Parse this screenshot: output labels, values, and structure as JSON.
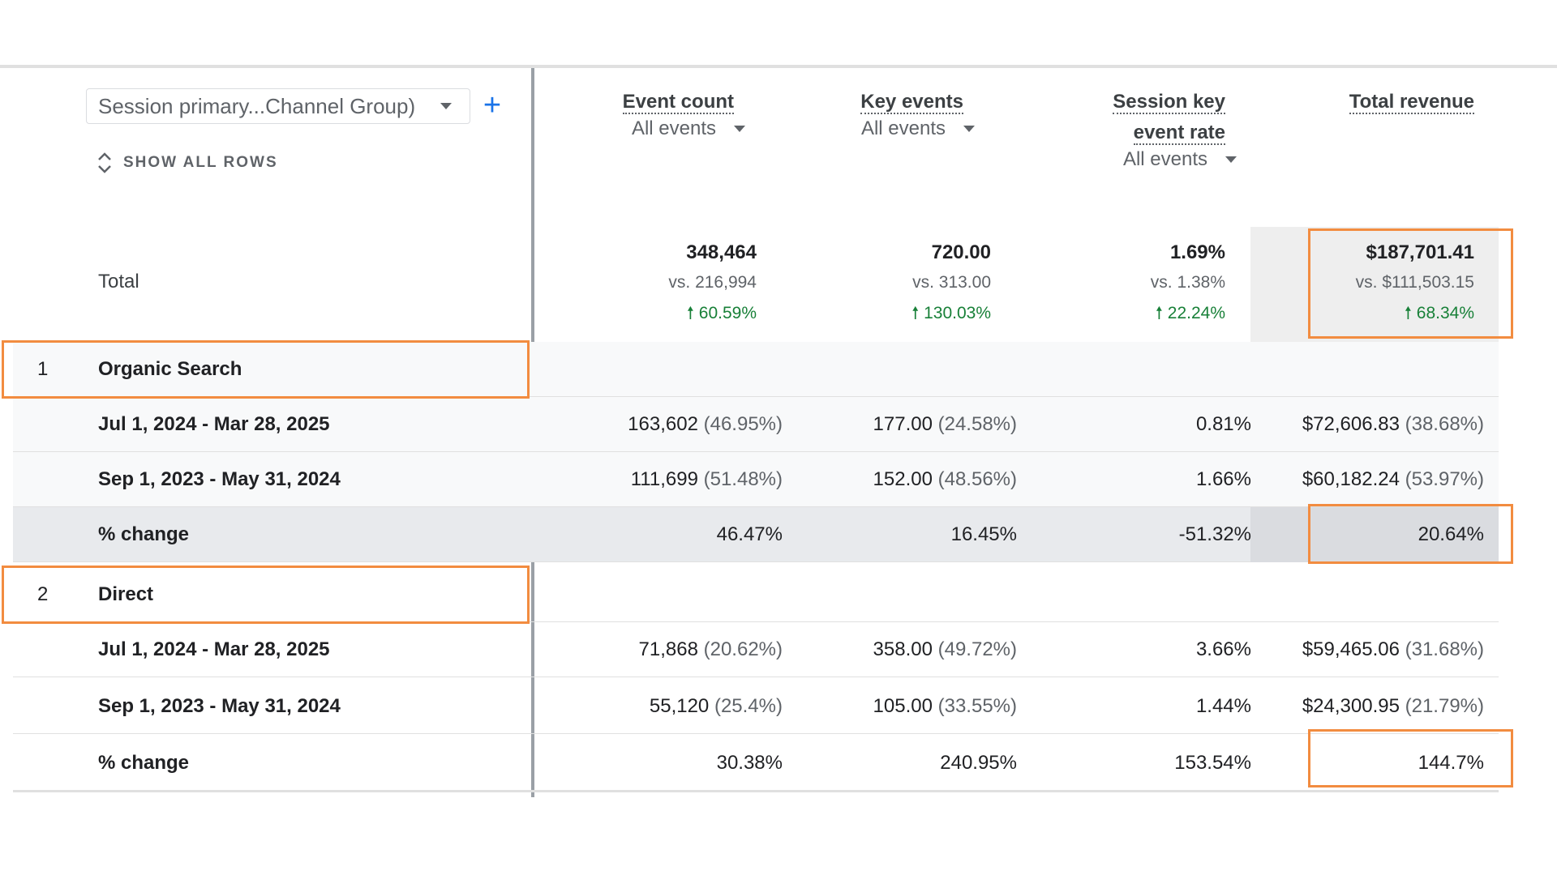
{
  "dimension": {
    "selector_label": "Session primary...Channel Group)",
    "add_label": "+",
    "show_all_rows": "SHOW ALL ROWS"
  },
  "columns": [
    {
      "metric": "Event count",
      "metric2": "",
      "filter": "All events"
    },
    {
      "metric": "Key events",
      "metric2": "",
      "filter": "All events"
    },
    {
      "metric": "Session key",
      "metric2": "event rate",
      "filter": "All events"
    },
    {
      "metric": "Total revenue",
      "metric2": ""
    }
  ],
  "total": {
    "label": "Total",
    "cells": [
      {
        "value": "348,464",
        "vs": "vs. 216,994",
        "pct": "60.59%"
      },
      {
        "value": "720.00",
        "vs": "vs. 313.00",
        "pct": "130.03%"
      },
      {
        "value": "1.69%",
        "vs": "vs. 1.38%",
        "pct": "22.24%"
      },
      {
        "value": "$187,701.41",
        "vs": "vs. $111,503.15",
        "pct": "68.34%"
      }
    ]
  },
  "groups": [
    {
      "index": "1",
      "name": "Organic Search",
      "rows": [
        {
          "label": "Jul 1, 2024 - Mar 28, 2025",
          "cells": [
            [
              "163,602",
              "(46.95%)"
            ],
            [
              "177.00",
              "(24.58%)"
            ],
            [
              "0.81%",
              ""
            ],
            [
              "$72,606.83",
              "(38.68%)"
            ]
          ]
        },
        {
          "label": "Sep 1, 2023 - May 31, 2024",
          "cells": [
            [
              "111,699",
              "(51.48%)"
            ],
            [
              "152.00",
              "(48.56%)"
            ],
            [
              "1.66%",
              ""
            ],
            [
              "$60,182.24",
              "(53.97%)"
            ]
          ]
        },
        {
          "label": "% change",
          "cells": [
            [
              "46.47%",
              ""
            ],
            [
              "16.45%",
              ""
            ],
            [
              "-51.32%",
              ""
            ],
            [
              "20.64%",
              ""
            ]
          ]
        }
      ]
    },
    {
      "index": "2",
      "name": "Direct",
      "rows": [
        {
          "label": "Jul 1, 2024 - Mar 28, 2025",
          "cells": [
            [
              "71,868",
              "(20.62%)"
            ],
            [
              "358.00",
              "(49.72%)"
            ],
            [
              "3.66%",
              ""
            ],
            [
              "$59,465.06",
              "(31.68%)"
            ]
          ]
        },
        {
          "label": "Sep 1, 2023 - May 31, 2024",
          "cells": [
            [
              "55,120",
              "(25.4%)"
            ],
            [
              "105.00",
              "(33.55%)"
            ],
            [
              "1.44%",
              ""
            ],
            [
              "$24,300.95",
              "(21.79%)"
            ]
          ]
        },
        {
          "label": "% change",
          "cells": [
            [
              "30.38%",
              ""
            ],
            [
              "240.95%",
              ""
            ],
            [
              "153.54%",
              ""
            ],
            [
              "144.7%",
              ""
            ]
          ]
        }
      ]
    }
  ],
  "colors": {
    "highlight": "#f28c40",
    "positive": "#188038",
    "accent": "#1a73e8"
  },
  "icons": {
    "dropdown": "caret-down-icon",
    "up_arrow": "arrow-up-icon",
    "expand": "unfold-icon",
    "add": "plus-icon"
  }
}
